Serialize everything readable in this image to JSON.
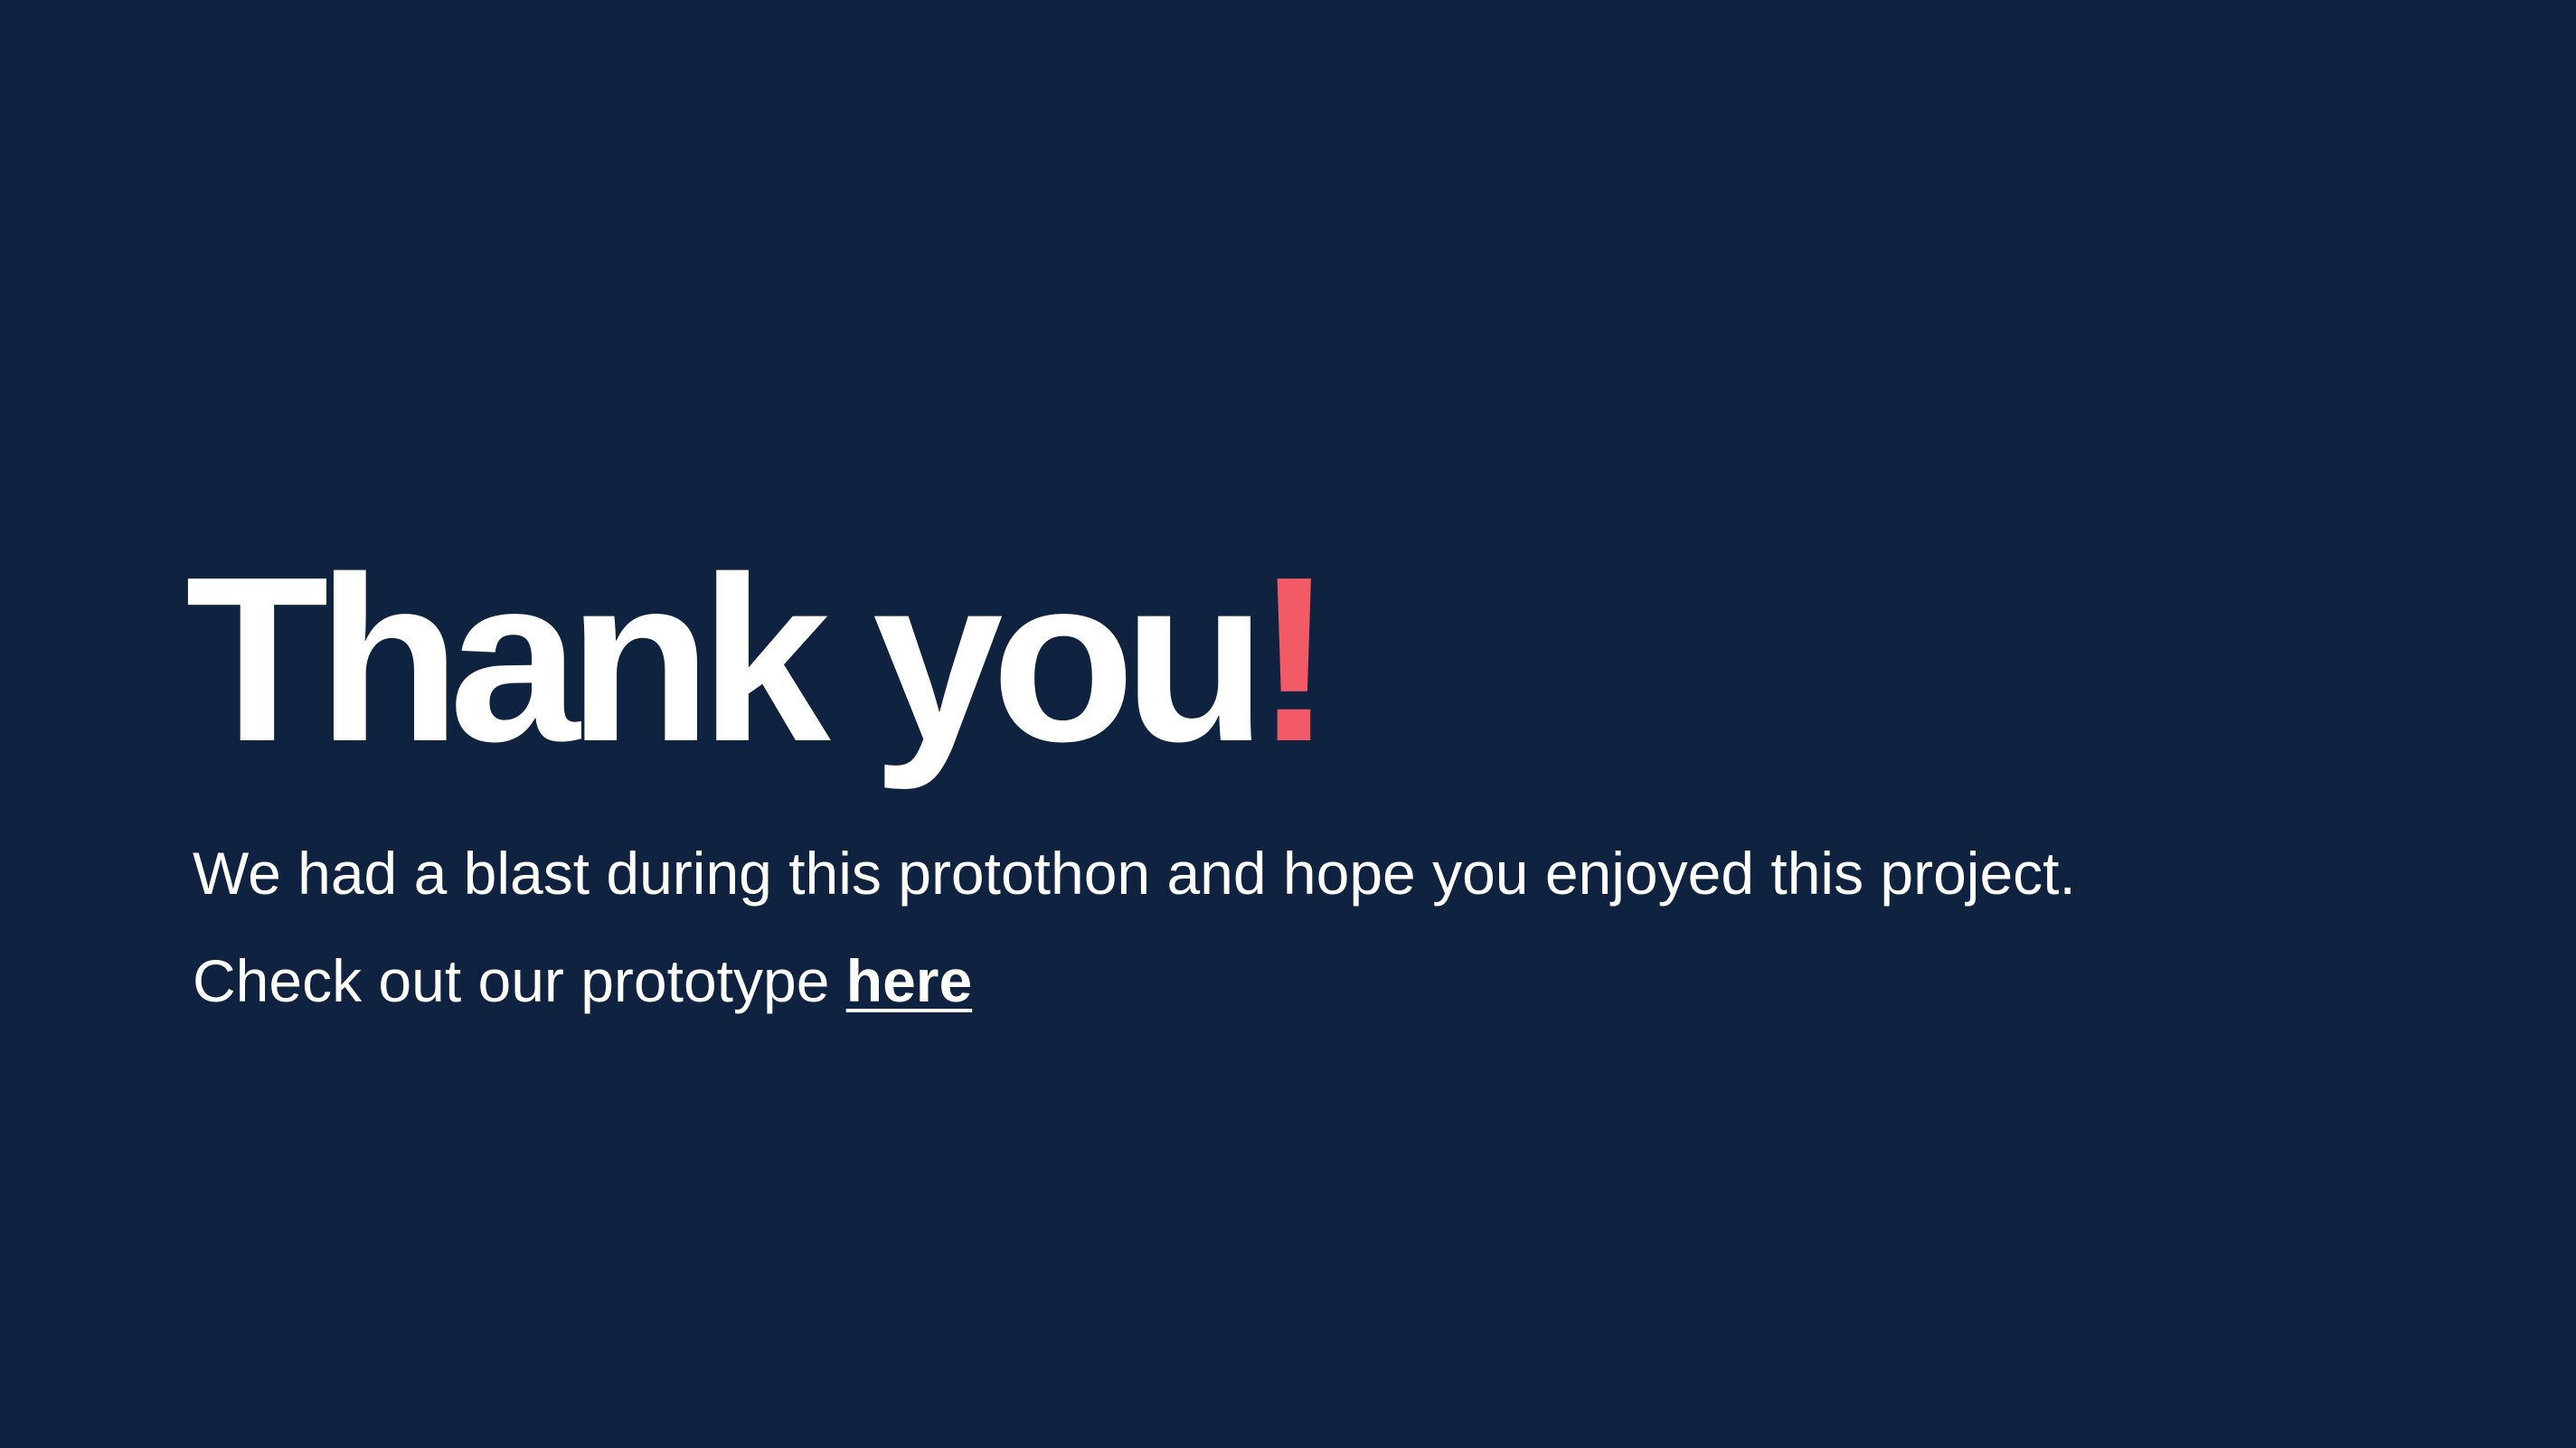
{
  "heading": {
    "main": "Thank you",
    "accent": "!"
  },
  "body": {
    "line1": "We had a blast during this protothon and hope you enjoyed this project.",
    "line2_prefix": "Check out our prototype ",
    "link_label": "here"
  },
  "colors": {
    "background": "#0f2240",
    "text": "#ffffff",
    "accent": "#f25a66"
  }
}
